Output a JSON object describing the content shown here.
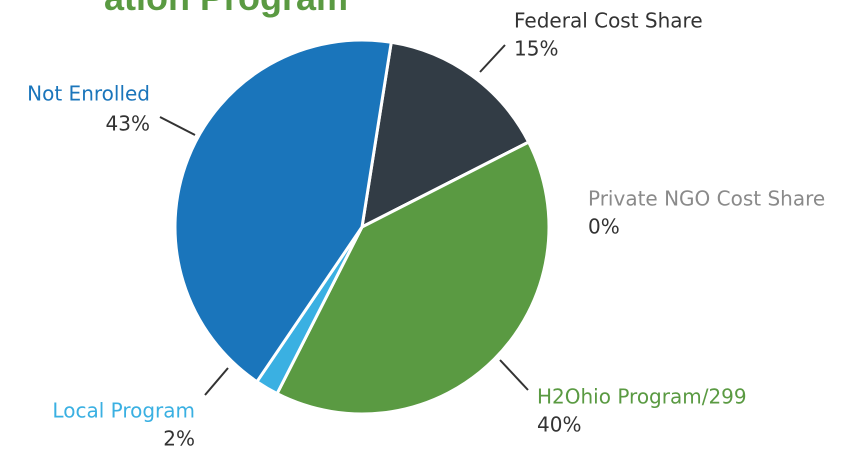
{
  "chart_data": {
    "type": "pie",
    "title": "ation Program",
    "categories": [
      "Federal Cost Share",
      "Private NGO Cost Share",
      "H2Ohio Program/299",
      "Local Program",
      "Not Enrolled"
    ],
    "values": [
      15,
      0,
      40,
      2,
      43
    ],
    "value_labels": [
      "15%",
      "0%",
      "40%",
      "2%",
      "43%"
    ],
    "colors": [
      "#323c45",
      "#8a8a8a",
      "#5a9a42",
      "#3ab0e2",
      "#1a75bb"
    ]
  }
}
